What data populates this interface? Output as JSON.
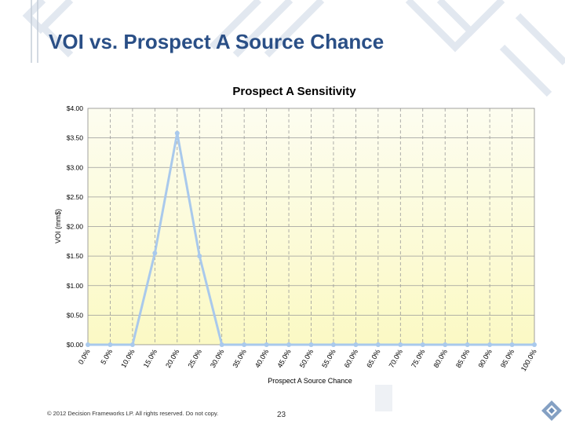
{
  "slide": {
    "title": "VOI vs. Prospect A Source Chance"
  },
  "footer": {
    "copyright": "© 2012 Decision Frameworks LP. All rights reserved. Do not copy.",
    "page_number": "23"
  },
  "colors": {
    "title": "#2a4f86",
    "plot_background_top": "#fdfdf0",
    "plot_background_bottom": "#fbf9c4",
    "series_line": "#a9c9ec",
    "grid_horizontal": "#9a9a9a",
    "grid_vertical": "#9a9a9a",
    "decor": "#dfe6ef"
  },
  "chart_data": {
    "type": "line",
    "title": "Prospect A Sensitivity",
    "xlabel": "Prospect A Source Chance",
    "ylabel": "VOI (mm$)",
    "ylim": [
      0,
      4
    ],
    "grid": true,
    "legend": "none",
    "y_ticks": [
      "$0.00",
      "$0.50",
      "$1.00",
      "$1.50",
      "$2.00",
      "$2.50",
      "$3.00",
      "$3.50",
      "$4.00"
    ],
    "y_tick_values": [
      0,
      0.5,
      1,
      1.5,
      2,
      2.5,
      3,
      3.5,
      4
    ],
    "categories": [
      "0.0%",
      "5.0%",
      "10.0%",
      "15.0%",
      "20.0%",
      "25.0%",
      "30.0%",
      "35.0%",
      "40.0%",
      "45.0%",
      "50.0%",
      "55.0%",
      "60.0%",
      "65.0%",
      "70.0%",
      "75.0%",
      "80.0%",
      "85.0%",
      "90.0%",
      "95.0%",
      "100.0%"
    ],
    "series": [
      {
        "values": [
          0,
          0,
          0,
          1.55,
          3.58,
          1.5,
          0,
          0,
          0,
          0,
          0,
          0,
          0,
          0,
          0,
          0,
          0,
          0,
          0,
          0,
          0
        ]
      }
    ]
  }
}
